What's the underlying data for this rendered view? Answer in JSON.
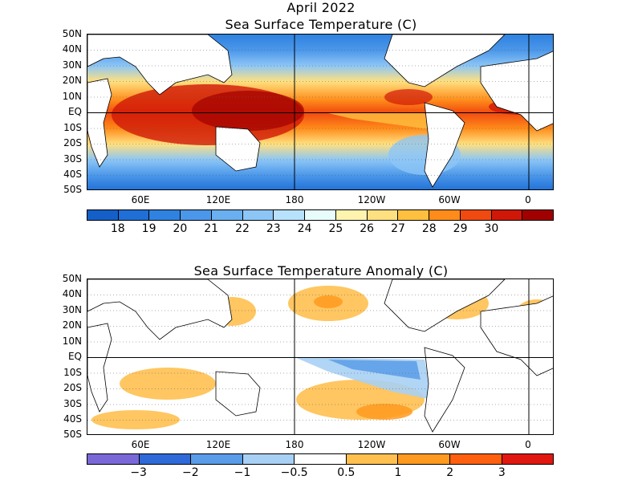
{
  "top_panel": {
    "title_line1": "April 2022",
    "title_line2": "Sea Surface Temperature (C)",
    "colorbar_colors": [
      "#1560c8",
      "#1f6fd6",
      "#2f82e0",
      "#4b97ea",
      "#6aaff0",
      "#8dc6f6",
      "#b8e2fb",
      "#e8fcfc",
      "#fff3b0",
      "#ffe080",
      "#ffc040",
      "#ff8c1a",
      "#f04a10",
      "#d01808",
      "#a00000"
    ],
    "colorbar_labels": [
      "18",
      "19",
      "20",
      "21",
      "22",
      "23",
      "24",
      "25",
      "26",
      "27",
      "28",
      "29",
      "30"
    ]
  },
  "bottom_panel": {
    "title": "Sea Surface Temperature Anomaly (C)",
    "colorbar_colors": [
      "#7a68d8",
      "#2f6ad8",
      "#5a9ce8",
      "#a8d0f4",
      "#ffffff",
      "#ffc050",
      "#ff9a20",
      "#ff6010",
      "#e01810"
    ],
    "colorbar_labels": [
      "−3",
      "−2",
      "−1",
      "−0.5",
      "0.5",
      "1",
      "2",
      "3"
    ]
  },
  "lat_labels": [
    "50N",
    "40N",
    "30N",
    "20N",
    "10N",
    "EQ",
    "10S",
    "20S",
    "30S",
    "40S",
    "50S"
  ],
  "lon_labels": [
    "60E",
    "120E",
    "180",
    "120W",
    "60W",
    "0"
  ]
}
